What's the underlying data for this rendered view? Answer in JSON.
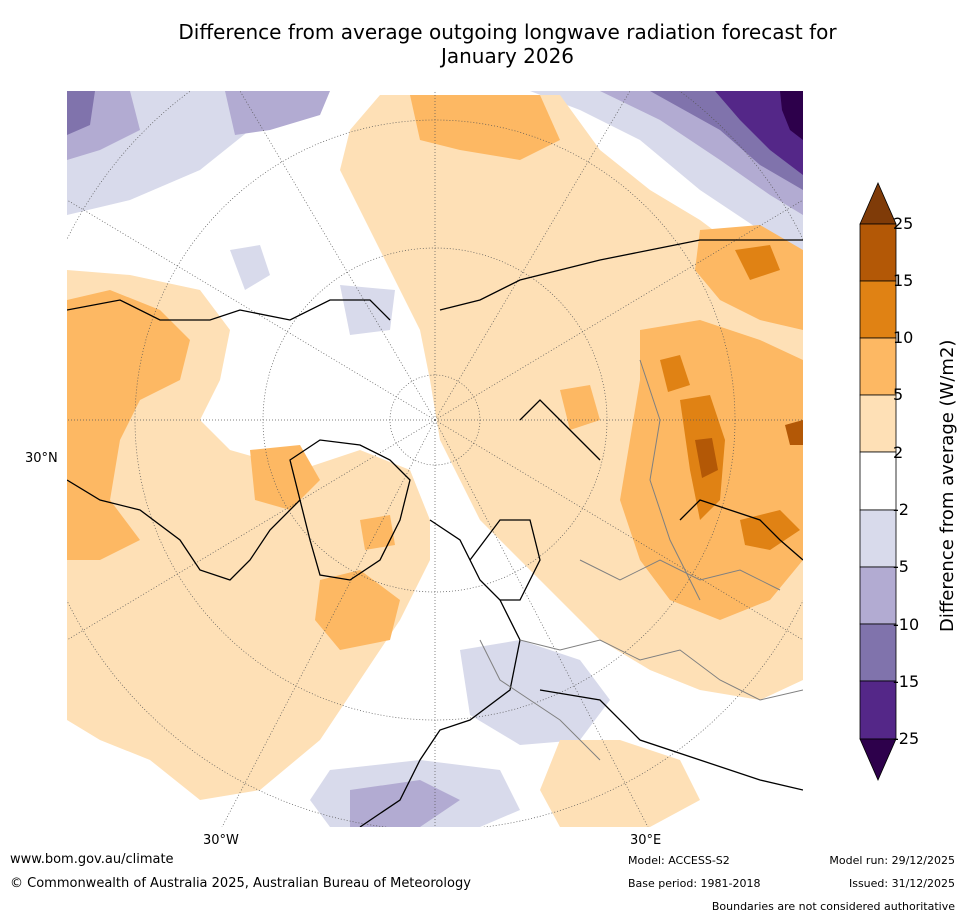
{
  "title": {
    "line1": "Difference from average outgoing longwave radiation forecast for",
    "line2": "January 2026"
  },
  "map": {
    "lat_label": "30°N",
    "lon_labels": {
      "west": "30°W",
      "east": "30°E"
    },
    "colors": {
      "land_outline": "#000000",
      "border": "#808080",
      "graticule": "#555555"
    }
  },
  "colorbar": {
    "title": "Difference from average (W/m2)",
    "ticks": [
      "25",
      "15",
      "10",
      "5",
      "2",
      "-2",
      "-5",
      "-10",
      "-15",
      "-25"
    ],
    "bins": [
      {
        "range": ">25",
        "color": "#7f3b08"
      },
      {
        "range": "15 to 25",
        "color": "#b35806"
      },
      {
        "range": "10 to 15",
        "color": "#e08214"
      },
      {
        "range": "5 to 10",
        "color": "#fdb863"
      },
      {
        "range": "2 to 5",
        "color": "#fee0b6"
      },
      {
        "range": "-2 to 2",
        "color": "#ffffff"
      },
      {
        "range": "-5 to -2",
        "color": "#d8daeb"
      },
      {
        "range": "-10 to -5",
        "color": "#b2abd2"
      },
      {
        "range": "-15 to -10",
        "color": "#8073ac"
      },
      {
        "range": "-25 to -15",
        "color": "#542788"
      },
      {
        "range": "<-25",
        "color": "#2d004b"
      }
    ]
  },
  "footer": {
    "website": "www.bom.gov.au/climate",
    "copyright": "© Commonwealth of Australia 2025, Australian Bureau of Meteorology",
    "model": "Model: ACCESS-S2",
    "base_period": "Base period: 1981-2018",
    "model_run": "Model run: 29/12/2025",
    "issued": "Issued: 31/12/2025",
    "disclaimer": "Boundaries are not considered authoritative"
  }
}
